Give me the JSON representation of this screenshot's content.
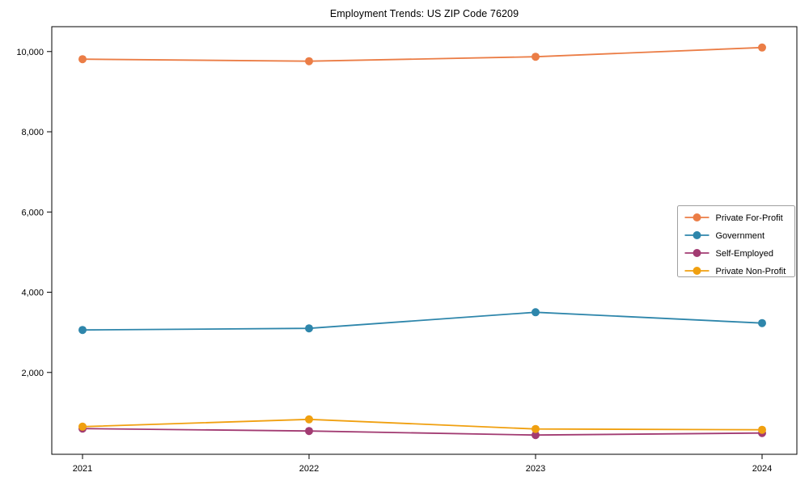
{
  "chart_data": {
    "type": "line",
    "title": "Employment Trends: US ZIP Code 76209",
    "xlabel": "",
    "ylabel": "",
    "x": [
      2021,
      2022,
      2023,
      2024
    ],
    "xtick_labels": [
      "2021",
      "2022",
      "2023",
      "2024"
    ],
    "yticks": [
      2000,
      4000,
      6000,
      8000,
      10000
    ],
    "ytick_labels": [
      "2,000",
      "4,000",
      "6,000",
      "8,000",
      "10,000"
    ],
    "ylim": [
      -40,
      10620
    ],
    "grid": false,
    "marker": "circle",
    "legend_position": "center right",
    "series": [
      {
        "name": "Private For-Profit",
        "color": "#eb7d46",
        "values": [
          9810,
          9760,
          9870,
          10100
        ]
      },
      {
        "name": "Government",
        "color": "#2e86ab",
        "values": [
          3060,
          3100,
          3500,
          3230
        ]
      },
      {
        "name": "Self-Employed",
        "color": "#a23b72",
        "values": [
          600,
          540,
          440,
          490
        ]
      },
      {
        "name": "Private Non-Profit",
        "color": "#f0a010",
        "values": [
          650,
          830,
          590,
          570
        ]
      }
    ],
    "axis_color": "#000000",
    "legend_border_color": "#a0a0a0",
    "background_color": "#ffffff"
  }
}
